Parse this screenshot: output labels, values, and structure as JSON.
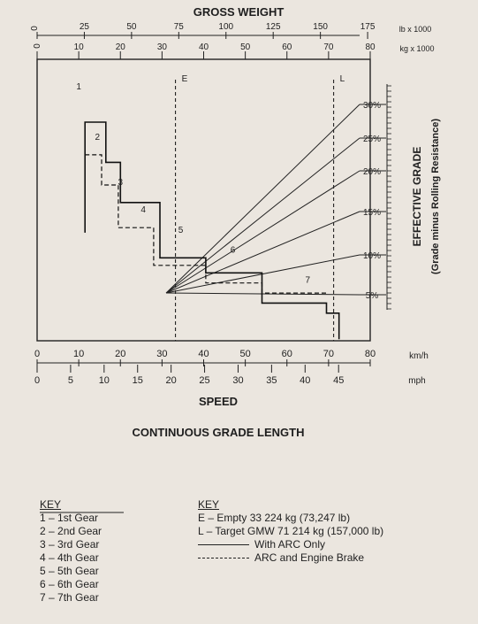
{
  "chart_data": {
    "type": "line",
    "title": "GROSS WEIGHT",
    "xlabel": "SPEED",
    "caption": "CONTINUOUS GRADE LENGTH",
    "ylabel": "EFFECTIVE GRADE",
    "ylabel_sub": "(Grade minus Rolling Resistance)",
    "top_scale_lb": {
      "ticks": [
        "0",
        "25",
        "50",
        "75",
        "100",
        "125",
        "150",
        "175"
      ],
      "unit": "lb x 1000"
    },
    "top_scale_kg": {
      "ticks": [
        "0",
        "10",
        "20",
        "30",
        "40",
        "50",
        "60",
        "70",
        "80"
      ],
      "unit": "kg x 1000"
    },
    "speed_kmh": {
      "ticks": [
        "0",
        "10",
        "20",
        "30",
        "40",
        "50",
        "60",
        "70",
        "80"
      ],
      "unit": "km/h"
    },
    "speed_mph": {
      "ticks": [
        "0",
        "5",
        "10",
        "15",
        "20",
        "25",
        "30",
        "35",
        "40",
        "45"
      ],
      "unit": "mph"
    },
    "weight_markers": [
      {
        "label": "E",
        "weight_kg": 33.224
      },
      {
        "label": "L",
        "weight_kg": 71.214
      }
    ],
    "grades": [
      {
        "label": "30%",
        "grade": 30,
        "kg_at_zero_speed": 31,
        "speed_at_80kg": 78
      },
      {
        "label": "25%",
        "grade": 25,
        "kg_at_zero_speed": 31,
        "speed_at_80kg": 64
      },
      {
        "label": "20%",
        "grade": 20,
        "kg_at_zero_speed": 31,
        "speed_at_80kg": 48
      },
      {
        "label": "15%",
        "grade": 15,
        "kg_at_zero_speed": 31,
        "speed_at_80kg": 34
      },
      {
        "label": "10%",
        "grade": 10,
        "kg_at_zero_speed": 31,
        "speed_at_80kg": 20
      },
      {
        "label": "5%",
        "grade": 5,
        "kg_at_zero_speed": 31,
        "speed_at_80kg": 8
      }
    ],
    "gear_curve_arc": [
      [
        11.5,
        21.5
      ],
      [
        11.5,
        43.5
      ],
      [
        16.5,
        43.5
      ],
      [
        16.5,
        35.5
      ],
      [
        20,
        35.5
      ],
      [
        20,
        27.5
      ],
      [
        29.5,
        27.5
      ],
      [
        29.5,
        16.5
      ],
      [
        40.5,
        16.5
      ],
      [
        40.5,
        13.5
      ],
      [
        54,
        13.5
      ],
      [
        54,
        7.5
      ],
      [
        69.5,
        7.5
      ],
      [
        69.5,
        5.5
      ],
      [
        72.5,
        5.5
      ],
      [
        72.5,
        0.3
      ]
    ],
    "gear_curve_engine_brake": [
      [
        11.5,
        37
      ],
      [
        15.5,
        37
      ],
      [
        15.5,
        31
      ],
      [
        19.5,
        31
      ],
      [
        19.5,
        22.5
      ],
      [
        28,
        22.5
      ],
      [
        28,
        15
      ],
      [
        40.5,
        15
      ],
      [
        40.5,
        11.5
      ],
      [
        54,
        11.5
      ],
      [
        54,
        9.5
      ],
      [
        69.5,
        9.5
      ]
    ],
    "gear_labels": [
      {
        "label": "1",
        "speed_kmh": 10,
        "grade": 50
      },
      {
        "label": "2",
        "speed_kmh": 14.5,
        "grade": 40
      },
      {
        "label": "3",
        "speed_kmh": 20,
        "grade": 31
      },
      {
        "label": "4",
        "speed_kmh": 25.5,
        "grade": 25.5
      },
      {
        "label": "5",
        "speed_kmh": 34.5,
        "grade": 21.5
      },
      {
        "label": "6",
        "speed_kmh": 47,
        "grade": 17.5
      },
      {
        "label": "7",
        "speed_kmh": 65,
        "grade": 11.5
      }
    ]
  },
  "key_left": {
    "title": "KEY",
    "items": [
      "1 – 1st Gear",
      "2 – 2nd Gear",
      "3 – 3rd Gear",
      "4 – 4th Gear",
      "5 – 5th Gear",
      "6 – 6th Gear",
      "7 – 7th Gear"
    ]
  },
  "key_right": {
    "title": "KEY",
    "items": [
      "E – Empty 33 224 kg (73,247 lb)",
      "L – Target GMW 71 214 kg (157,000 lb)"
    ],
    "arc_only": "With ARC Only",
    "arc_engine": "ARC and Engine Brake"
  }
}
